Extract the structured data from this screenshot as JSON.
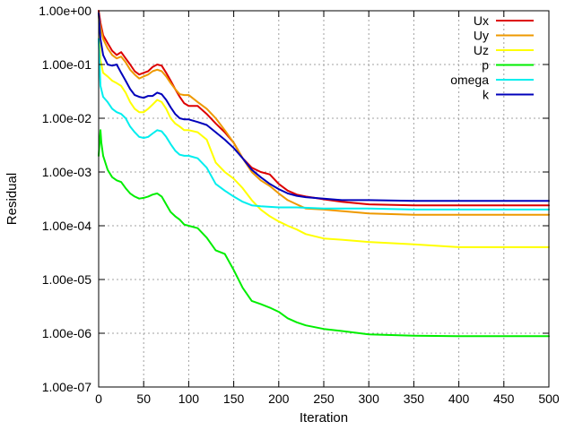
{
  "chart_data": {
    "type": "line",
    "title": "",
    "xlabel": "Iteration",
    "ylabel": "Residual",
    "xlim": [
      0,
      500
    ],
    "ylim": [
      1e-07,
      1
    ],
    "y_scale": "log",
    "grid": true,
    "legend_position": "top-right",
    "x_ticks": [
      0,
      50,
      100,
      150,
      200,
      250,
      300,
      350,
      400,
      450,
      500
    ],
    "x_tick_labels": [
      "0",
      "50",
      "100",
      "150",
      "200",
      "250",
      "300",
      "350",
      "400",
      "450",
      "500"
    ],
    "y_ticks": [
      1e-07,
      1e-06,
      1e-05,
      0.0001,
      0.001,
      0.01,
      0.1,
      1
    ],
    "y_tick_labels": [
      "1.00e-07",
      "1.00e-06",
      "1.00e-05",
      "1.00e-04",
      "1.00e-03",
      "1.00e-02",
      "1.00e-01",
      "1.00e+00"
    ],
    "series": [
      {
        "name": "Ux",
        "color": "#dd0000",
        "x": [
          0,
          2,
          5,
          10,
          15,
          20,
          25,
          30,
          35,
          40,
          45,
          50,
          55,
          60,
          65,
          70,
          75,
          80,
          85,
          90,
          95,
          100,
          110,
          120,
          130,
          140,
          150,
          160,
          170,
          180,
          190,
          200,
          210,
          220,
          230,
          240,
          250,
          270,
          300,
          350,
          400,
          450,
          500
        ],
        "y": [
          1.0,
          0.6,
          0.35,
          0.25,
          0.18,
          0.15,
          0.17,
          0.13,
          0.1,
          0.075,
          0.065,
          0.07,
          0.075,
          0.09,
          0.1,
          0.095,
          0.07,
          0.05,
          0.035,
          0.025,
          0.019,
          0.017,
          0.017,
          0.012,
          0.008,
          0.0055,
          0.0035,
          0.0018,
          0.0012,
          0.001,
          0.0009,
          0.0006,
          0.00045,
          0.00038,
          0.00035,
          0.00033,
          0.00031,
          0.00028,
          0.00025,
          0.00024,
          0.00024,
          0.00024,
          0.00024
        ]
      },
      {
        "name": "Uy",
        "color": "#ee9900",
        "x": [
          0,
          2,
          5,
          10,
          15,
          20,
          25,
          30,
          35,
          40,
          45,
          50,
          55,
          60,
          65,
          70,
          75,
          80,
          85,
          90,
          95,
          100,
          110,
          120,
          130,
          140,
          150,
          160,
          170,
          180,
          190,
          200,
          210,
          220,
          230,
          250,
          300,
          350,
          400,
          450,
          500
        ],
        "y": [
          0.8,
          0.5,
          0.3,
          0.2,
          0.15,
          0.13,
          0.14,
          0.11,
          0.08,
          0.065,
          0.055,
          0.06,
          0.065,
          0.075,
          0.08,
          0.075,
          0.06,
          0.045,
          0.035,
          0.028,
          0.027,
          0.027,
          0.02,
          0.015,
          0.01,
          0.006,
          0.0035,
          0.0018,
          0.001,
          0.0007,
          0.00055,
          0.0004,
          0.0003,
          0.00025,
          0.00021,
          0.0002,
          0.00017,
          0.00016,
          0.00016,
          0.00016,
          0.00016
        ]
      },
      {
        "name": "Uz",
        "color": "#ffff00",
        "x": [
          0,
          2,
          5,
          10,
          15,
          20,
          25,
          30,
          35,
          40,
          45,
          50,
          55,
          60,
          65,
          70,
          75,
          80,
          85,
          90,
          95,
          100,
          110,
          120,
          130,
          140,
          150,
          160,
          170,
          180,
          190,
          200,
          210,
          220,
          230,
          250,
          270,
          300,
          350,
          400,
          450,
          500
        ],
        "y": [
          0.9,
          0.12,
          0.07,
          0.06,
          0.05,
          0.045,
          0.04,
          0.03,
          0.02,
          0.015,
          0.013,
          0.013,
          0.015,
          0.018,
          0.022,
          0.02,
          0.015,
          0.01,
          0.008,
          0.007,
          0.006,
          0.006,
          0.0055,
          0.004,
          0.0015,
          0.001,
          0.00075,
          0.0005,
          0.0003,
          0.0002,
          0.00015,
          0.00012,
          0.0001,
          8.5e-05,
          7e-05,
          5.8e-05,
          5.5e-05,
          5e-05,
          4.5e-05,
          4e-05,
          4e-05,
          4e-05
        ]
      },
      {
        "name": "p",
        "color": "#00ee00",
        "x": [
          0,
          2,
          3,
          5,
          10,
          15,
          20,
          25,
          30,
          35,
          40,
          45,
          50,
          55,
          60,
          65,
          70,
          75,
          80,
          85,
          90,
          95,
          100,
          110,
          120,
          130,
          140,
          150,
          160,
          170,
          180,
          190,
          200,
          210,
          220,
          230,
          250,
          270,
          300,
          350,
          400,
          450,
          500
        ],
        "y": [
          0.002,
          0.006,
          0.0035,
          0.002,
          0.0011,
          0.0008,
          0.0007,
          0.00065,
          0.0005,
          0.0004,
          0.00035,
          0.00032,
          0.00033,
          0.00035,
          0.00038,
          0.0004,
          0.00035,
          0.00025,
          0.00018,
          0.00015,
          0.00013,
          0.000105,
          0.0001,
          9e-05,
          6e-05,
          3.5e-05,
          3e-05,
          1.5e-05,
          7e-06,
          4e-06,
          3.5e-06,
          3e-06,
          2.5e-06,
          1.9e-06,
          1.6e-06,
          1.4e-06,
          1.2e-06,
          1.1e-06,
          9.5e-07,
          9e-07,
          8.8e-07,
          8.8e-07,
          8.8e-07
        ]
      },
      {
        "name": "omega",
        "color": "#00eeee",
        "x": [
          0,
          2,
          5,
          10,
          15,
          20,
          25,
          30,
          35,
          40,
          45,
          50,
          55,
          60,
          65,
          70,
          75,
          80,
          85,
          90,
          95,
          100,
          110,
          120,
          130,
          140,
          150,
          160,
          170,
          180,
          200,
          220,
          250,
          300,
          350,
          400,
          450,
          500
        ],
        "y": [
          0.3,
          0.04,
          0.025,
          0.02,
          0.015,
          0.013,
          0.012,
          0.01,
          0.007,
          0.0055,
          0.0045,
          0.0043,
          0.0045,
          0.0052,
          0.006,
          0.0057,
          0.0045,
          0.0033,
          0.0025,
          0.0021,
          0.002,
          0.002,
          0.0018,
          0.0012,
          0.0006,
          0.00045,
          0.00035,
          0.00028,
          0.00024,
          0.00023,
          0.00022,
          0.00022,
          0.00021,
          0.00021,
          0.0002,
          0.0002,
          0.0002,
          0.0002
        ]
      },
      {
        "name": "k",
        "color": "#0000bb",
        "x": [
          0,
          2,
          5,
          10,
          15,
          20,
          25,
          30,
          35,
          40,
          45,
          50,
          55,
          60,
          65,
          70,
          75,
          80,
          85,
          90,
          95,
          100,
          110,
          120,
          130,
          140,
          150,
          160,
          170,
          180,
          190,
          200,
          210,
          220,
          230,
          250,
          270,
          300,
          350,
          400,
          450,
          500
        ],
        "y": [
          0.9,
          0.3,
          0.15,
          0.1,
          0.095,
          0.1,
          0.07,
          0.05,
          0.035,
          0.027,
          0.025,
          0.024,
          0.026,
          0.026,
          0.03,
          0.028,
          0.022,
          0.016,
          0.012,
          0.01,
          0.0095,
          0.0095,
          0.0085,
          0.0075,
          0.0055,
          0.004,
          0.0028,
          0.0018,
          0.0011,
          0.0008,
          0.0006,
          0.00048,
          0.0004,
          0.00036,
          0.00034,
          0.00032,
          0.0003,
          0.0003,
          0.00029,
          0.00029,
          0.00029,
          0.00029
        ]
      }
    ]
  }
}
